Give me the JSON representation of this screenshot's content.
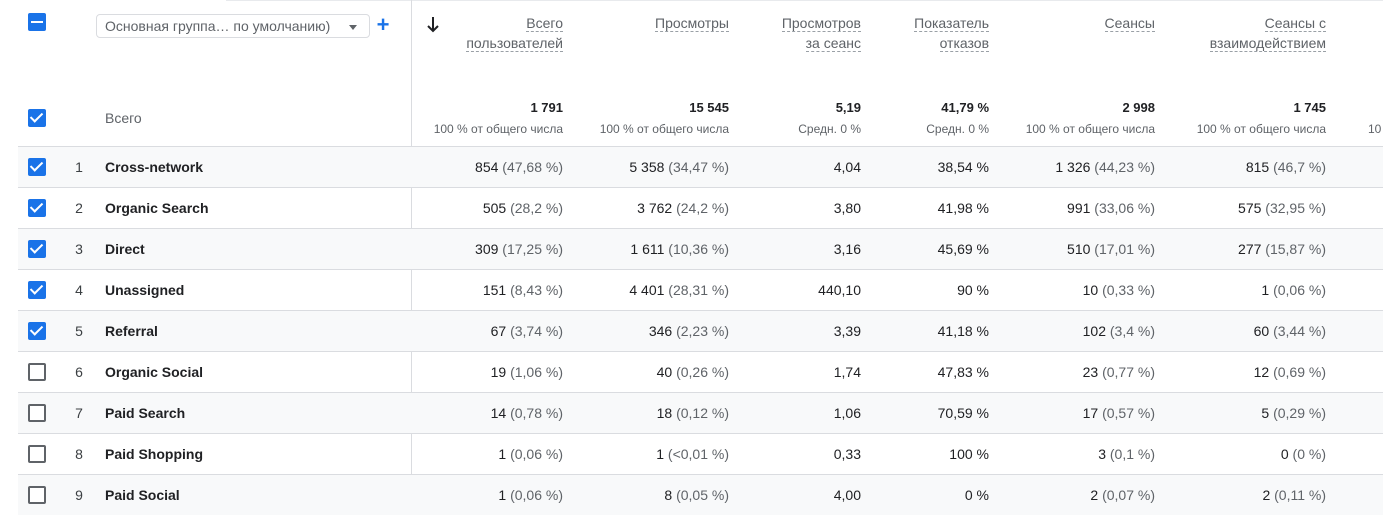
{
  "header": {
    "dimension_select": "Основная группа… по умолчанию)",
    "plus": "+"
  },
  "columns": [
    {
      "l1": "Всего",
      "l2": "пользователей"
    },
    {
      "l1": "Просмотры",
      "l2": ""
    },
    {
      "l1": "Просмотров",
      "l2": "за сеанс"
    },
    {
      "l1": "Показатель",
      "l2": "отказов"
    },
    {
      "l1": "Сеансы",
      "l2": ""
    },
    {
      "l1": "Сеансы с",
      "l2": "взаимодействием"
    }
  ],
  "totals": {
    "label": "Всего",
    "values": [
      {
        "v": "1 791",
        "sub": "100 % от общего числа"
      },
      {
        "v": "15 545",
        "sub": "100 % от общего числа"
      },
      {
        "v": "5,19",
        "sub": "Средн. 0 %"
      },
      {
        "v": "41,79 %",
        "sub": "Средн. 0 %"
      },
      {
        "v": "2 998",
        "sub": "100 % от общего числа"
      },
      {
        "v": "1 745",
        "sub": "100 % от общего числа"
      }
    ],
    "cut_off_sub": "10"
  },
  "rows": [
    {
      "n": "1",
      "checked": true,
      "dim": "Cross-network",
      "c": [
        [
          "854",
          "(47,68 %)"
        ],
        [
          "5 358",
          "(34,47 %)"
        ],
        [
          "4,04",
          ""
        ],
        [
          "38,54 %",
          ""
        ],
        [
          "1 326",
          "(44,23 %)"
        ],
        [
          "815",
          "(46,7 %)"
        ]
      ]
    },
    {
      "n": "2",
      "checked": true,
      "dim": "Organic Search",
      "c": [
        [
          "505",
          "(28,2 %)"
        ],
        [
          "3 762",
          "(24,2 %)"
        ],
        [
          "3,80",
          ""
        ],
        [
          "41,98 %",
          ""
        ],
        [
          "991",
          "(33,06 %)"
        ],
        [
          "575",
          "(32,95 %)"
        ]
      ]
    },
    {
      "n": "3",
      "checked": true,
      "dim": "Direct",
      "c": [
        [
          "309",
          "(17,25 %)"
        ],
        [
          "1 611",
          "(10,36 %)"
        ],
        [
          "3,16",
          ""
        ],
        [
          "45,69 %",
          ""
        ],
        [
          "510",
          "(17,01 %)"
        ],
        [
          "277",
          "(15,87 %)"
        ]
      ]
    },
    {
      "n": "4",
      "checked": true,
      "dim": "Unassigned",
      "c": [
        [
          "151",
          "(8,43 %)"
        ],
        [
          "4 401",
          "(28,31 %)"
        ],
        [
          "440,10",
          ""
        ],
        [
          "90 %",
          ""
        ],
        [
          "10",
          "(0,33 %)"
        ],
        [
          "1",
          "(0,06 %)"
        ]
      ]
    },
    {
      "n": "5",
      "checked": true,
      "dim": "Referral",
      "c": [
        [
          "67",
          "(3,74 %)"
        ],
        [
          "346",
          "(2,23 %)"
        ],
        [
          "3,39",
          ""
        ],
        [
          "41,18 %",
          ""
        ],
        [
          "102",
          "(3,4 %)"
        ],
        [
          "60",
          "(3,44 %)"
        ]
      ]
    },
    {
      "n": "6",
      "checked": false,
      "dim": "Organic Social",
      "c": [
        [
          "19",
          "(1,06 %)"
        ],
        [
          "40",
          "(0,26 %)"
        ],
        [
          "1,74",
          ""
        ],
        [
          "47,83 %",
          ""
        ],
        [
          "23",
          "(0,77 %)"
        ],
        [
          "12",
          "(0,69 %)"
        ]
      ]
    },
    {
      "n": "7",
      "checked": false,
      "dim": "Paid Search",
      "c": [
        [
          "14",
          "(0,78 %)"
        ],
        [
          "18",
          "(0,12 %)"
        ],
        [
          "1,06",
          ""
        ],
        [
          "70,59 %",
          ""
        ],
        [
          "17",
          "(0,57 %)"
        ],
        [
          "5",
          "(0,29 %)"
        ]
      ]
    },
    {
      "n": "8",
      "checked": false,
      "dim": "Paid Shopping",
      "c": [
        [
          "1",
          "(0,06 %)"
        ],
        [
          "1",
          "(<0,01 %)"
        ],
        [
          "0,33",
          ""
        ],
        [
          "100 %",
          ""
        ],
        [
          "3",
          "(0,1 %)"
        ],
        [
          "0",
          "(0 %)"
        ]
      ]
    },
    {
      "n": "9",
      "checked": false,
      "dim": "Paid Social",
      "c": [
        [
          "1",
          "(0,06 %)"
        ],
        [
          "8",
          "(0,05 %)"
        ],
        [
          "4,00",
          ""
        ],
        [
          "0 %",
          ""
        ],
        [
          "2",
          "(0,07 %)"
        ],
        [
          "2",
          "(0,11 %)"
        ]
      ]
    }
  ],
  "colors": {
    "accent": "#1a73e8",
    "border": "#dadce0",
    "muted": "#5f6368"
  },
  "icons": {
    "sort": "arrow-down-icon",
    "add": "plus-icon",
    "dropdown": "caret-down-icon"
  }
}
